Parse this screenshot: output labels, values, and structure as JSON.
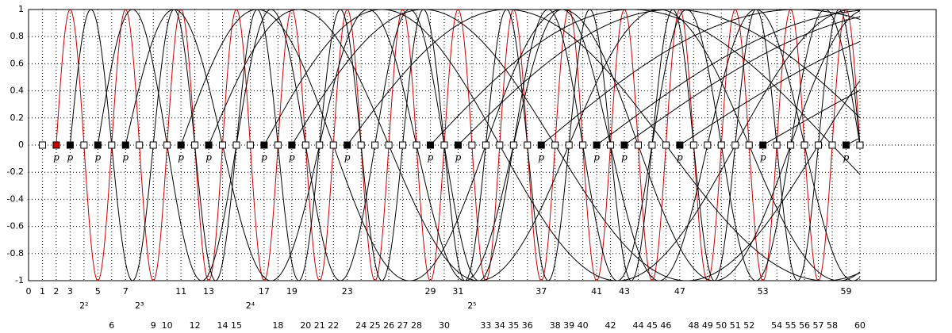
{
  "chart_data": {
    "type": "line",
    "xlim": [
      0,
      65.5
    ],
    "ylim": [
      -1,
      1
    ],
    "yticks": [
      -1,
      -0.8,
      -0.6,
      -0.4,
      -0.2,
      0,
      0.2,
      0.4,
      0.6,
      0.8,
      1
    ],
    "xticks": [
      0,
      1,
      2,
      3,
      {
        "value": 4,
        "label": "2²"
      },
      5,
      6,
      7,
      {
        "value": 8,
        "label": "2³"
      },
      9,
      10,
      11,
      12,
      13,
      14,
      15,
      {
        "value": 16,
        "label": "2⁴"
      },
      17,
      18,
      19,
      20,
      21,
      22,
      23,
      24,
      25,
      26,
      27,
      28,
      29,
      30,
      31,
      {
        "value": 32,
        "label": "2⁵"
      },
      33,
      34,
      35,
      36,
      37,
      38,
      39,
      40,
      41,
      42,
      43,
      44,
      45,
      46,
      47,
      48,
      49,
      50,
      51,
      52,
      53,
      54,
      55,
      56,
      57,
      58,
      59,
      60
    ],
    "grid": true,
    "markers": {
      "x": [
        1,
        2,
        3,
        4,
        5,
        6,
        7,
        8,
        9,
        10,
        11,
        12,
        13,
        14,
        15,
        16,
        17,
        18,
        19,
        20,
        21,
        22,
        23,
        24,
        25,
        26,
        27,
        28,
        29,
        30,
        31,
        32,
        33,
        34,
        35,
        36,
        37,
        38,
        39,
        40,
        41,
        42,
        43,
        44,
        45,
        46,
        47,
        48,
        49,
        50,
        51,
        52,
        53,
        54,
        55,
        56,
        57,
        58,
        59,
        60
      ],
      "values": [
        0,
        0,
        0,
        0,
        0,
        0,
        0,
        0,
        0,
        0,
        0,
        0,
        0,
        0,
        0,
        0,
        0,
        0,
        0,
        0,
        0,
        0,
        0,
        0,
        0,
        0,
        0,
        0,
        0,
        0,
        0,
        0,
        0,
        0,
        0,
        0,
        0,
        0,
        0,
        0,
        0,
        0,
        0,
        0,
        0,
        0,
        0,
        0,
        0,
        0,
        0,
        0,
        0,
        0,
        0,
        0,
        0,
        0,
        0,
        0
      ]
    },
    "primes": [
      2,
      3,
      5,
      7,
      11,
      13,
      17,
      19,
      23,
      29,
      31,
      37,
      41,
      43,
      47,
      53,
      59
    ],
    "prime_label": "p",
    "color": "#000000",
    "highlight_color": "#cc0000"
  }
}
